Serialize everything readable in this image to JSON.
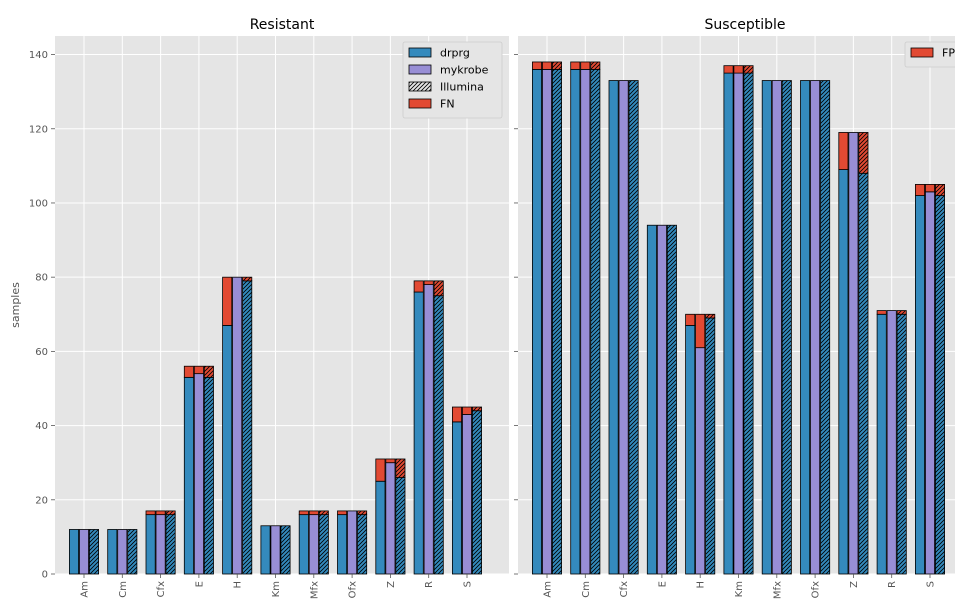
{
  "chart_data": [
    {
      "type": "bar",
      "title": "Resistant",
      "ylabel": "samples",
      "xlabel": "",
      "ylim": [
        0,
        145
      ],
      "yticks": [
        0,
        20,
        40,
        60,
        80,
        100,
        120,
        140
      ],
      "grid": true,
      "categories": [
        "Am",
        "Cm",
        "Cfx",
        "E",
        "H",
        "Km",
        "Mfx",
        "Ofx",
        "Z",
        "R",
        "S"
      ],
      "groups": [
        {
          "name": "drprg",
          "base": [
            12,
            12,
            16,
            53,
            67,
            13,
            16,
            16,
            25,
            76,
            41
          ],
          "fn": [
            0,
            0,
            1,
            3,
            13,
            0,
            1,
            1,
            6,
            3,
            4
          ]
        },
        {
          "name": "mykrobe",
          "base": [
            12,
            12,
            16,
            54,
            80,
            13,
            16,
            17,
            30,
            78,
            43
          ],
          "fn": [
            0,
            0,
            1,
            2,
            0,
            0,
            1,
            0,
            1,
            1,
            2
          ]
        },
        {
          "name": "Illumina",
          "base": [
            12,
            12,
            16,
            53,
            79,
            13,
            16,
            16,
            26,
            75,
            44
          ],
          "fn": [
            0,
            0,
            1,
            3,
            1,
            0,
            1,
            1,
            5,
            4,
            1
          ]
        }
      ],
      "legend": {
        "placement": "top-right",
        "entries": [
          {
            "label": "drprg",
            "style": "drprg"
          },
          {
            "label": "mykrobe",
            "style": "mykrobe"
          },
          {
            "label": "Illumina",
            "style": "hatch"
          },
          {
            "label": "FN",
            "style": "error"
          }
        ]
      }
    },
    {
      "type": "bar",
      "title": "Susceptible",
      "ylim": [
        0,
        145
      ],
      "grid": true,
      "categories": [
        "Am",
        "Cm",
        "Cfx",
        "E",
        "H",
        "Km",
        "Mfx",
        "Ofx",
        "Z",
        "R",
        "S"
      ],
      "groups": [
        {
          "name": "drprg",
          "base": [
            136,
            136,
            133,
            94,
            67,
            135,
            133,
            133,
            109,
            70,
            102
          ],
          "fp": [
            2,
            2,
            0,
            0,
            3,
            2,
            0,
            0,
            10,
            1,
            3
          ]
        },
        {
          "name": "mykrobe",
          "base": [
            136,
            136,
            133,
            94,
            61,
            135,
            133,
            133,
            119,
            71,
            103
          ],
          "fp": [
            2,
            2,
            0,
            0,
            9,
            2,
            0,
            0,
            0,
            0,
            2
          ]
        },
        {
          "name": "Illumina",
          "base": [
            136,
            136,
            133,
            94,
            69,
            135,
            133,
            133,
            108,
            70,
            102
          ],
          "fp": [
            2,
            2,
            0,
            0,
            1,
            2,
            0,
            0,
            11,
            1,
            3
          ]
        }
      ],
      "legend": {
        "placement": "top-right",
        "entries": [
          {
            "label": "FP",
            "style": "error"
          }
        ]
      }
    }
  ],
  "colors": {
    "drprg": "#348abd",
    "mykrobe": "#988ed5",
    "error": "#e24a33",
    "hatch": "#000000"
  }
}
